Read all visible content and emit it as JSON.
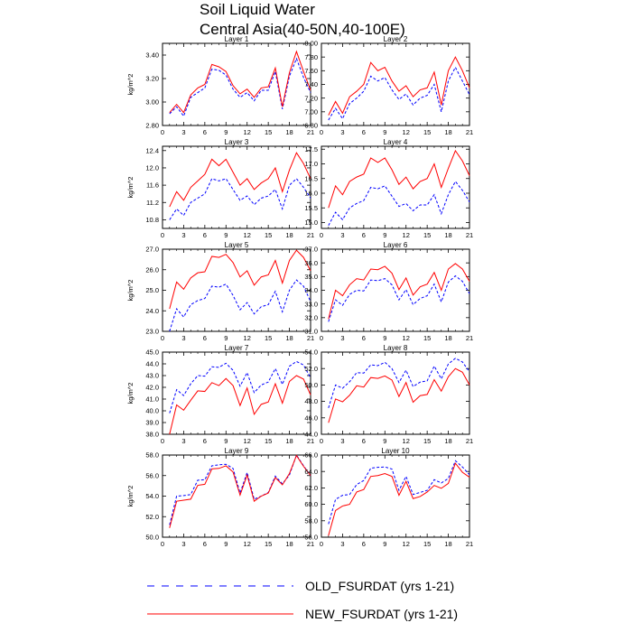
{
  "title_line1": "Soil Liquid Water",
  "title_line2": "Central Asia(40-50N,40-100E)",
  "legend": {
    "old_label": "OLD_FSURDAT (yrs 1-21)",
    "new_label": "NEW_FSURDAT (yrs 1-21)",
    "old_color": "#0000ff",
    "new_color": "#ff0000"
  },
  "chart_data": [
    {
      "type": "line",
      "title": "Layer 1",
      "ylabel": "kg/m^2",
      "xlim": [
        0,
        21
      ],
      "ylim": [
        2.8,
        3.5
      ],
      "xticks": [
        0,
        3,
        6,
        9,
        12,
        15,
        18,
        21
      ],
      "yticks": [
        2.8,
        3.0,
        3.2,
        3.4
      ],
      "ytick_labels": [
        "2.80",
        "3.00",
        "3.20",
        "3.40"
      ],
      "x": [
        1,
        2,
        3,
        4,
        5,
        6,
        7,
        8,
        9,
        10,
        11,
        12,
        13,
        14,
        15,
        16,
        17,
        18,
        19,
        20,
        21
      ],
      "series": [
        {
          "name": "OLD_FSURDAT (yrs 1-21)",
          "values": [
            2.9,
            2.96,
            2.88,
            3.04,
            3.08,
            3.12,
            3.28,
            3.27,
            3.23,
            3.11,
            3.04,
            3.08,
            3.01,
            3.1,
            3.1,
            3.26,
            2.94,
            3.22,
            3.37,
            3.21,
            3.08
          ]
        },
        {
          "name": "NEW_FSURDAT (yrs 1-21)",
          "values": [
            2.91,
            2.98,
            2.91,
            3.06,
            3.12,
            3.15,
            3.32,
            3.3,
            3.26,
            3.14,
            3.07,
            3.11,
            3.04,
            3.12,
            3.13,
            3.29,
            2.96,
            3.25,
            3.43,
            3.26,
            3.1
          ]
        }
      ]
    },
    {
      "type": "line",
      "title": "Layer 2",
      "ylabel": "",
      "xlim": [
        0,
        21
      ],
      "ylim": [
        6.8,
        8.0
      ],
      "xticks": [
        0,
        3,
        6,
        9,
        12,
        15,
        18,
        21
      ],
      "yticks": [
        6.8,
        7.0,
        7.2,
        7.4,
        7.6,
        7.8,
        8.0
      ],
      "ytick_labels": [
        "6.80",
        "7.00",
        "7.20",
        "7.40",
        "7.60",
        "7.80",
        "8.00"
      ],
      "x": [
        1,
        2,
        3,
        4,
        5,
        6,
        7,
        8,
        9,
        10,
        11,
        12,
        13,
        14,
        15,
        16,
        17,
        18,
        19,
        20,
        21
      ],
      "series": [
        {
          "name": "OLD_FSURDAT (yrs 1-21)",
          "values": [
            6.88,
            7.05,
            6.9,
            7.12,
            7.2,
            7.3,
            7.52,
            7.45,
            7.5,
            7.32,
            7.18,
            7.26,
            7.1,
            7.2,
            7.24,
            7.4,
            7.0,
            7.45,
            7.65,
            7.45,
            7.25
          ]
        },
        {
          "name": "NEW_FSURDAT (yrs 1-21)",
          "values": [
            6.95,
            7.15,
            6.98,
            7.22,
            7.3,
            7.4,
            7.72,
            7.6,
            7.65,
            7.45,
            7.3,
            7.38,
            7.22,
            7.32,
            7.35,
            7.58,
            7.1,
            7.6,
            7.8,
            7.6,
            7.35
          ]
        }
      ]
    },
    {
      "type": "line",
      "title": "Layer 3",
      "ylabel": "kg/m^2",
      "xlim": [
        0,
        21
      ],
      "ylim": [
        10.6,
        12.5
      ],
      "xticks": [
        0,
        3,
        6,
        9,
        12,
        15,
        18,
        21
      ],
      "yticks": [
        10.8,
        11.2,
        11.6,
        12.0,
        12.4
      ],
      "ytick_labels": [
        "10.8",
        "11.2",
        "11.6",
        "12.0",
        "12.4"
      ],
      "x": [
        1,
        2,
        3,
        4,
        5,
        6,
        7,
        8,
        9,
        10,
        11,
        12,
        13,
        14,
        15,
        16,
        17,
        18,
        19,
        20,
        21
      ],
      "series": [
        {
          "name": "OLD_FSURDAT (yrs 1-21)",
          "values": [
            10.8,
            11.05,
            10.9,
            11.2,
            11.3,
            11.4,
            11.75,
            11.7,
            11.75,
            11.5,
            11.25,
            11.35,
            11.15,
            11.3,
            11.35,
            11.5,
            11.05,
            11.6,
            11.75,
            11.55,
            11.3
          ]
        },
        {
          "name": "NEW_FSURDAT (yrs 1-21)",
          "values": [
            11.1,
            11.45,
            11.25,
            11.55,
            11.7,
            11.85,
            12.2,
            12.05,
            12.2,
            11.9,
            11.6,
            11.75,
            11.5,
            11.65,
            11.75,
            12.0,
            11.45,
            11.95,
            12.35,
            12.1,
            11.75
          ]
        }
      ]
    },
    {
      "type": "line",
      "title": "Layer 4",
      "ylabel": "",
      "xlim": [
        0,
        21
      ],
      "ylim": [
        14.8,
        17.6
      ],
      "xticks": [
        0,
        3,
        6,
        9,
        12,
        15,
        18,
        21
      ],
      "yticks": [
        15.0,
        15.5,
        16.0,
        16.5,
        17.0,
        17.5
      ],
      "ytick_labels": [
        "15.0",
        "15.5",
        "16.0",
        "16.5",
        "17.0",
        "17.5"
      ],
      "x": [
        1,
        2,
        3,
        4,
        5,
        6,
        7,
        8,
        9,
        10,
        11,
        12,
        13,
        14,
        15,
        16,
        17,
        18,
        19,
        20,
        21
      ],
      "series": [
        {
          "name": "OLD_FSURDAT (yrs 1-21)",
          "values": [
            14.9,
            15.35,
            15.1,
            15.5,
            15.65,
            15.75,
            16.2,
            16.15,
            16.25,
            15.9,
            15.55,
            15.65,
            15.4,
            15.6,
            15.6,
            15.95,
            15.3,
            15.95,
            16.4,
            16.1,
            15.7
          ]
        },
        {
          "name": "NEW_FSURDAT (yrs 1-21)",
          "values": [
            15.5,
            16.25,
            15.95,
            16.4,
            16.55,
            16.65,
            17.2,
            17.05,
            17.2,
            16.8,
            16.3,
            16.55,
            16.15,
            16.4,
            16.5,
            17.0,
            16.2,
            16.85,
            17.45,
            17.1,
            16.6
          ]
        }
      ]
    },
    {
      "type": "line",
      "title": "Layer 5",
      "ylabel": "kg/m^2",
      "xlim": [
        0,
        21
      ],
      "ylim": [
        23.0,
        27.0
      ],
      "xticks": [
        0,
        3,
        6,
        9,
        12,
        15,
        18,
        21
      ],
      "yticks": [
        23.0,
        24.0,
        25.0,
        26.0,
        27.0
      ],
      "ytick_labels": [
        "23.0",
        "24.0",
        "25.0",
        "26.0",
        "27.0"
      ],
      "x": [
        1,
        2,
        3,
        4,
        5,
        6,
        7,
        8,
        9,
        10,
        11,
        12,
        13,
        14,
        15,
        16,
        17,
        18,
        19,
        20,
        21
      ],
      "series": [
        {
          "name": "OLD_FSURDAT (yrs 1-21)",
          "values": [
            23.0,
            24.1,
            23.7,
            24.3,
            24.5,
            24.6,
            25.2,
            25.15,
            25.3,
            24.75,
            24.05,
            24.4,
            23.85,
            24.2,
            24.3,
            24.95,
            23.95,
            25.0,
            25.5,
            25.2,
            24.45
          ]
        },
        {
          "name": "NEW_FSURDAT (yrs 1-21)",
          "values": [
            24.1,
            25.4,
            25.05,
            25.6,
            25.85,
            25.9,
            26.65,
            26.6,
            26.75,
            26.35,
            25.65,
            25.95,
            25.25,
            25.65,
            25.75,
            26.45,
            25.35,
            26.45,
            26.95,
            26.6,
            25.95
          ]
        }
      ]
    },
    {
      "type": "line",
      "title": "Layer 6",
      "ylabel": "",
      "xlim": [
        0,
        21
      ],
      "ylim": [
        31.0,
        37.0
      ],
      "xticks": [
        0,
        3,
        6,
        9,
        12,
        15,
        18,
        21
      ],
      "yticks": [
        31.0,
        32.0,
        33.0,
        34.0,
        35.0,
        36.0,
        37.0
      ],
      "ytick_labels": [
        "31.0",
        "32.0",
        "33.0",
        "34.0",
        "35.0",
        "36.0",
        "37.0"
      ],
      "x": [
        1,
        2,
        3,
        4,
        5,
        6,
        7,
        8,
        9,
        10,
        11,
        12,
        13,
        14,
        15,
        16,
        17,
        18,
        19,
        20,
        21
      ],
      "series": [
        {
          "name": "OLD_FSURDAT (yrs 1-21)",
          "values": [
            31.7,
            33.3,
            32.9,
            33.7,
            34.0,
            33.95,
            34.75,
            34.7,
            34.85,
            34.4,
            33.3,
            34.05,
            32.95,
            33.4,
            33.6,
            34.45,
            33.15,
            34.6,
            35.05,
            34.65,
            33.75
          ]
        },
        {
          "name": "NEW_FSURDAT (yrs 1-21)",
          "values": [
            31.9,
            34.0,
            33.6,
            34.4,
            34.85,
            34.75,
            35.55,
            35.5,
            35.75,
            35.25,
            34.05,
            34.9,
            33.65,
            34.25,
            34.45,
            35.3,
            34.0,
            35.55,
            35.95,
            35.55,
            34.65
          ]
        }
      ]
    },
    {
      "type": "line",
      "title": "Layer 7",
      "ylabel": "kg/m^2",
      "xlim": [
        0,
        21
      ],
      "ylim": [
        38.0,
        45.0
      ],
      "xticks": [
        0,
        3,
        6,
        9,
        12,
        15,
        18,
        21
      ],
      "yticks": [
        38.0,
        39.0,
        40.0,
        41.0,
        42.0,
        43.0,
        44.0,
        45.0
      ],
      "ytick_labels": [
        "38.0",
        "39.0",
        "40.0",
        "41.0",
        "42.0",
        "43.0",
        "44.0",
        "45.0"
      ],
      "x": [
        1,
        2,
        3,
        4,
        5,
        6,
        7,
        8,
        9,
        10,
        11,
        12,
        13,
        14,
        15,
        16,
        17,
        18,
        19,
        20,
        21
      ],
      "series": [
        {
          "name": "OLD_FSURDAT (yrs 1-21)",
          "values": [
            39.8,
            41.8,
            41.3,
            42.3,
            43.0,
            42.95,
            43.75,
            43.7,
            44.05,
            43.45,
            42.1,
            43.25,
            41.55,
            42.2,
            42.45,
            43.6,
            42.25,
            43.8,
            44.2,
            43.9,
            42.8
          ]
        },
        {
          "name": "NEW_FSURDAT (yrs 1-21)",
          "values": [
            38.0,
            40.5,
            40.05,
            40.9,
            41.7,
            41.65,
            42.4,
            42.15,
            42.75,
            42.15,
            40.45,
            41.95,
            39.7,
            40.55,
            40.75,
            42.3,
            40.65,
            42.5,
            43.0,
            42.7,
            41.35
          ]
        }
      ]
    },
    {
      "type": "line",
      "title": "Layer 8",
      "ylabel": "",
      "xlim": [
        0,
        21
      ],
      "ylim": [
        44.0,
        54.0
      ],
      "xticks": [
        0,
        3,
        6,
        9,
        12,
        15,
        18,
        21
      ],
      "yticks": [
        44.0,
        46.0,
        48.0,
        50.0,
        52.0,
        54.0
      ],
      "ytick_labels": [
        "44.0",
        "46.0",
        "48.0",
        "50.0",
        "52.0",
        "54.0"
      ],
      "x": [
        1,
        2,
        3,
        4,
        5,
        6,
        7,
        8,
        9,
        10,
        11,
        12,
        13,
        14,
        15,
        16,
        17,
        18,
        19,
        20,
        21
      ],
      "series": [
        {
          "name": "OLD_FSURDAT (yrs 1-21)",
          "values": [
            47.2,
            50.0,
            49.6,
            50.4,
            51.5,
            51.45,
            52.45,
            52.35,
            52.75,
            52.0,
            50.3,
            51.8,
            49.8,
            50.35,
            50.5,
            52.3,
            50.75,
            52.55,
            53.25,
            52.8,
            51.6
          ]
        },
        {
          "name": "NEW_FSURDAT (yrs 1-21)",
          "values": [
            45.4,
            48.3,
            47.95,
            48.75,
            49.9,
            49.75,
            50.9,
            50.8,
            51.1,
            50.6,
            48.6,
            50.3,
            47.9,
            48.7,
            48.85,
            50.65,
            49.25,
            51.0,
            52.0,
            51.55,
            50.0
          ]
        }
      ]
    },
    {
      "type": "line",
      "title": "Layer 9",
      "ylabel": "kg/m^2",
      "xlim": [
        0,
        21
      ],
      "ylim": [
        50.0,
        58.0
      ],
      "xticks": [
        0,
        3,
        6,
        9,
        12,
        15,
        18,
        21
      ],
      "yticks": [
        50.0,
        52.0,
        54.0,
        56.0,
        58.0
      ],
      "ytick_labels": [
        "50.0",
        "52.0",
        "54.0",
        "56.0",
        "58.0"
      ],
      "x": [
        1,
        2,
        3,
        4,
        5,
        6,
        7,
        8,
        9,
        10,
        11,
        12,
        13,
        14,
        15,
        16,
        17,
        18,
        19,
        20,
        21
      ],
      "series": [
        {
          "name": "OLD_FSURDAT (yrs 1-21)",
          "values": [
            51.2,
            54.0,
            54.05,
            54.15,
            55.55,
            55.6,
            56.95,
            57.05,
            57.1,
            56.7,
            54.3,
            56.3,
            53.7,
            54.0,
            54.35,
            55.95,
            55.2,
            56.05,
            58.0,
            56.95,
            56.0
          ]
        },
        {
          "name": "NEW_FSURDAT (yrs 1-21)",
          "values": [
            50.9,
            53.5,
            53.6,
            53.7,
            55.05,
            55.15,
            56.65,
            56.7,
            56.95,
            56.35,
            54.1,
            56.05,
            53.5,
            54.0,
            54.3,
            55.8,
            55.1,
            56.2,
            57.95,
            56.9,
            56.0
          ]
        }
      ]
    },
    {
      "type": "line",
      "title": "Layer 10",
      "ylabel": "",
      "xlim": [
        0,
        21
      ],
      "ylim": [
        56.0,
        66.0
      ],
      "xticks": [
        0,
        3,
        6,
        9,
        12,
        15,
        18,
        21
      ],
      "yticks": [
        56.0,
        58.0,
        60.0,
        62.0,
        64.0,
        66.0
      ],
      "ytick_labels": [
        "56.0",
        "58.0",
        "60.0",
        "62.0",
        "64.0",
        "66.0"
      ],
      "x": [
        1,
        2,
        3,
        4,
        5,
        6,
        7,
        8,
        9,
        10,
        11,
        12,
        13,
        14,
        15,
        16,
        17,
        18,
        19,
        20,
        21
      ],
      "series": [
        {
          "name": "OLD_FSURDAT (yrs 1-21)",
          "values": [
            57.6,
            60.6,
            61.1,
            61.2,
            62.4,
            62.9,
            64.4,
            64.5,
            64.55,
            64.3,
            61.7,
            63.4,
            61.2,
            61.45,
            61.7,
            63.0,
            62.6,
            63.15,
            65.3,
            64.55,
            63.6
          ]
        },
        {
          "name": "NEW_FSURDAT (yrs 1-21)",
          "values": [
            56.2,
            59.25,
            59.8,
            60.0,
            61.5,
            61.8,
            63.4,
            63.5,
            63.75,
            63.4,
            61.1,
            62.8,
            60.7,
            60.95,
            61.5,
            62.3,
            61.95,
            62.55,
            65.0,
            63.9,
            63.3
          ]
        }
      ]
    }
  ]
}
